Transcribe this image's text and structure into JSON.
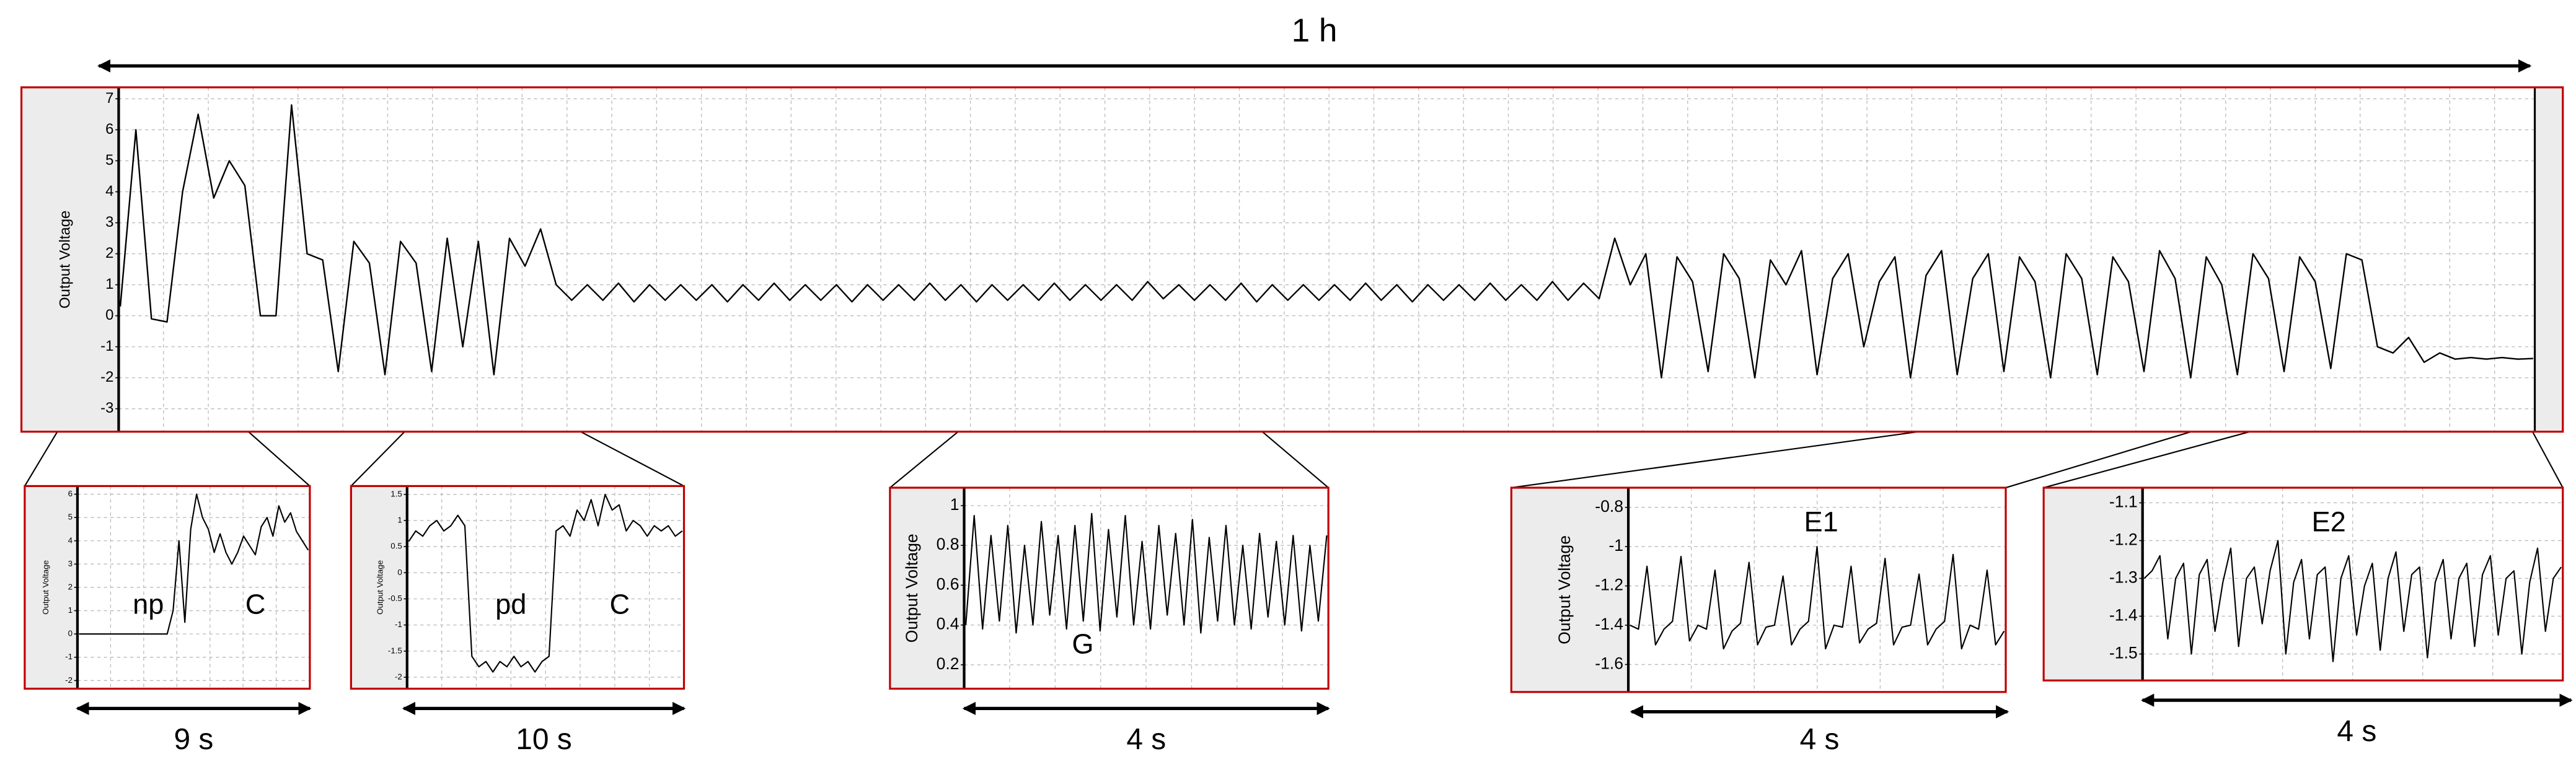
{
  "chart_data": [
    {
      "type": "line",
      "y_label": "Output Voltage",
      "duration": "1 h",
      "color": "#000000",
      "grid": true,
      "ylim": [
        -3.74,
        7.37
      ],
      "yticks": [
        7,
        6,
        5,
        4,
        3,
        2,
        1,
        0,
        -1,
        -2,
        -3
      ],
      "values": [
        0.3,
        6.0,
        -0.1,
        -0.2,
        4.0,
        6.5,
        3.8,
        5.0,
        4.2,
        0,
        0,
        6.8,
        2.0,
        1.8,
        -1.8,
        2.4,
        1.7,
        -1.9,
        2.4,
        1.7,
        -1.8,
        2.5,
        -1.0,
        2.4,
        -1.9,
        2.5,
        1.6,
        2.8,
        1.0,
        0.5,
        1.0,
        0.5,
        1.05,
        0.45,
        1.0,
        0.5,
        1.0,
        0.5,
        1.0,
        0.45,
        1.0,
        0.5,
        1.05,
        0.5,
        1.0,
        0.5,
        1.0,
        0.45,
        1.0,
        0.5,
        1.0,
        0.5,
        1.05,
        0.5,
        1.0,
        0.45,
        1.0,
        0.5,
        1.0,
        0.5,
        1.05,
        0.5,
        1.0,
        0.5,
        1.0,
        0.5,
        1.1,
        0.55,
        1.0,
        0.5,
        1.0,
        0.5,
        1.05,
        0.45,
        1.0,
        0.5,
        1.0,
        0.5,
        1.0,
        0.5,
        1.05,
        0.5,
        1.0,
        0.45,
        1.0,
        0.5,
        1.0,
        0.5,
        1.05,
        0.5,
        1.0,
        0.5,
        1.1,
        0.5,
        1.05,
        0.55,
        2.5,
        1.0,
        2.0,
        -2.0,
        1.9,
        1.1,
        -1.8,
        2.0,
        1.2,
        -2.0,
        1.8,
        1.0,
        2.1,
        -1.9,
        1.2,
        2.0,
        -1.0,
        1.1,
        1.9,
        -2.0,
        1.3,
        2.1,
        -1.9,
        1.2,
        2.0,
        -1.8,
        1.9,
        1.1,
        -2.0,
        2.0,
        1.2,
        -1.9,
        1.9,
        1.1,
        -1.8,
        2.1,
        1.2,
        -2.0,
        1.9,
        1.0,
        -1.9,
        2.0,
        1.2,
        -1.8,
        1.9,
        1.1,
        -1.7,
        2.0,
        1.8,
        -1.0,
        -1.2,
        -0.7,
        -1.5,
        -1.2,
        -1.4,
        -1.35,
        -1.4,
        -1.35,
        -1.4,
        -1.38
      ]
    },
    {
      "type": "line",
      "y_label": "Output Voltage",
      "duration": "9 s",
      "annotations": [
        "np",
        "C"
      ],
      "color": "#000000",
      "grid": true,
      "ylim": [
        -2.35,
        6.35
      ],
      "yticks": [
        6,
        5,
        4,
        3,
        2,
        1,
        0,
        -1,
        -2
      ],
      "values": [
        0,
        0,
        0,
        0,
        0,
        0,
        0,
        0,
        0,
        0,
        0,
        0,
        0,
        0,
        0,
        0,
        1,
        4,
        0.5,
        4.5,
        6,
        5,
        4.5,
        3.5,
        4.3,
        3.5,
        3,
        3.5,
        4.2,
        3.8,
        3.4,
        4.6,
        5,
        4.2,
        5.5,
        4.8,
        5.2,
        4.4,
        4.0,
        3.6
      ]
    },
    {
      "type": "line",
      "y_label": "Output Voltage",
      "duration": "10 s",
      "annotations": [
        "pd",
        "C"
      ],
      "color": "#000000",
      "grid": true,
      "ylim": [
        -2.22,
        1.66
      ],
      "yticks": [
        1.5,
        1,
        0.5,
        0,
        -0.5,
        -1,
        -1.5,
        -2
      ],
      "values": [
        0.6,
        0.8,
        0.7,
        0.9,
        1.0,
        0.8,
        0.9,
        1.1,
        0.9,
        -1.6,
        -1.8,
        -1.7,
        -1.9,
        -1.7,
        -1.8,
        -1.6,
        -1.8,
        -1.7,
        -1.9,
        -1.7,
        -1.6,
        0.8,
        0.9,
        0.7,
        1.2,
        1.0,
        1.4,
        0.9,
        1.5,
        1.2,
        1.3,
        0.8,
        1.0,
        0.9,
        0.7,
        0.9,
        0.8,
        0.9,
        0.7,
        0.8
      ]
    },
    {
      "type": "line",
      "y_label": "Output Voltage",
      "duration": "4 s",
      "annotations": [
        "G"
      ],
      "color": "#000000",
      "grid": true,
      "ylim": [
        0.08,
        1.09
      ],
      "yticks": [
        1,
        0.8,
        0.6,
        0.4,
        0.2
      ],
      "values": [
        0.4,
        0.95,
        0.38,
        0.85,
        0.42,
        0.9,
        0.36,
        0.8,
        0.4,
        0.92,
        0.45,
        0.85,
        0.38,
        0.9,
        0.42,
        0.96,
        0.37,
        0.88,
        0.44,
        0.95,
        0.4,
        0.82,
        0.38,
        0.9,
        0.45,
        0.86,
        0.4,
        0.93,
        0.36,
        0.84,
        0.42,
        0.9,
        0.4,
        0.8,
        0.38,
        0.86,
        0.44,
        0.82,
        0.4,
        0.85,
        0.37,
        0.8,
        0.42,
        0.85
      ]
    },
    {
      "type": "line",
      "y_label": "Output Voltage",
      "duration": "4 s",
      "annotations": [
        "E1"
      ],
      "color": "#000000",
      "grid": true,
      "ylim": [
        -1.74,
        -0.7
      ],
      "yticks": [
        -0.8,
        -1,
        -1.2,
        -1.4,
        -1.6
      ],
      "values": [
        -1.4,
        -1.42,
        -1.1,
        -1.5,
        -1.42,
        -1.38,
        -1.05,
        -1.48,
        -1.4,
        -1.42,
        -1.12,
        -1.52,
        -1.43,
        -1.39,
        -1.08,
        -1.5,
        -1.41,
        -1.4,
        -1.15,
        -1.5,
        -1.42,
        -1.38,
        -1.0,
        -1.52,
        -1.4,
        -1.41,
        -1.1,
        -1.49,
        -1.42,
        -1.39,
        -1.06,
        -1.5,
        -1.41,
        -1.4,
        -1.14,
        -1.5,
        -1.42,
        -1.38,
        -1.04,
        -1.52,
        -1.4,
        -1.42,
        -1.12,
        -1.5,
        -1.43
      ]
    },
    {
      "type": "line",
      "duration": "4 s",
      "annotations": [
        "E2"
      ],
      "color": "#000000",
      "grid": true,
      "ylim": [
        -1.57,
        -1.06
      ],
      "yticks": [
        -1.1,
        -1.2,
        -1.3,
        -1.4,
        -1.5
      ],
      "values": [
        -1.3,
        -1.28,
        -1.24,
        -1.46,
        -1.3,
        -1.26,
        -1.5,
        -1.29,
        -1.25,
        -1.44,
        -1.31,
        -1.22,
        -1.48,
        -1.3,
        -1.27,
        -1.42,
        -1.28,
        -1.2,
        -1.5,
        -1.31,
        -1.25,
        -1.46,
        -1.29,
        -1.27,
        -1.52,
        -1.3,
        -1.24,
        -1.45,
        -1.32,
        -1.26,
        -1.49,
        -1.3,
        -1.23,
        -1.44,
        -1.29,
        -1.27,
        -1.51,
        -1.31,
        -1.25,
        -1.46,
        -1.3,
        -1.26,
        -1.48,
        -1.29,
        -1.24,
        -1.45,
        -1.3,
        -1.28,
        -1.5,
        -1.31,
        -1.22,
        -1.44,
        -1.3,
        -1.27
      ]
    }
  ]
}
